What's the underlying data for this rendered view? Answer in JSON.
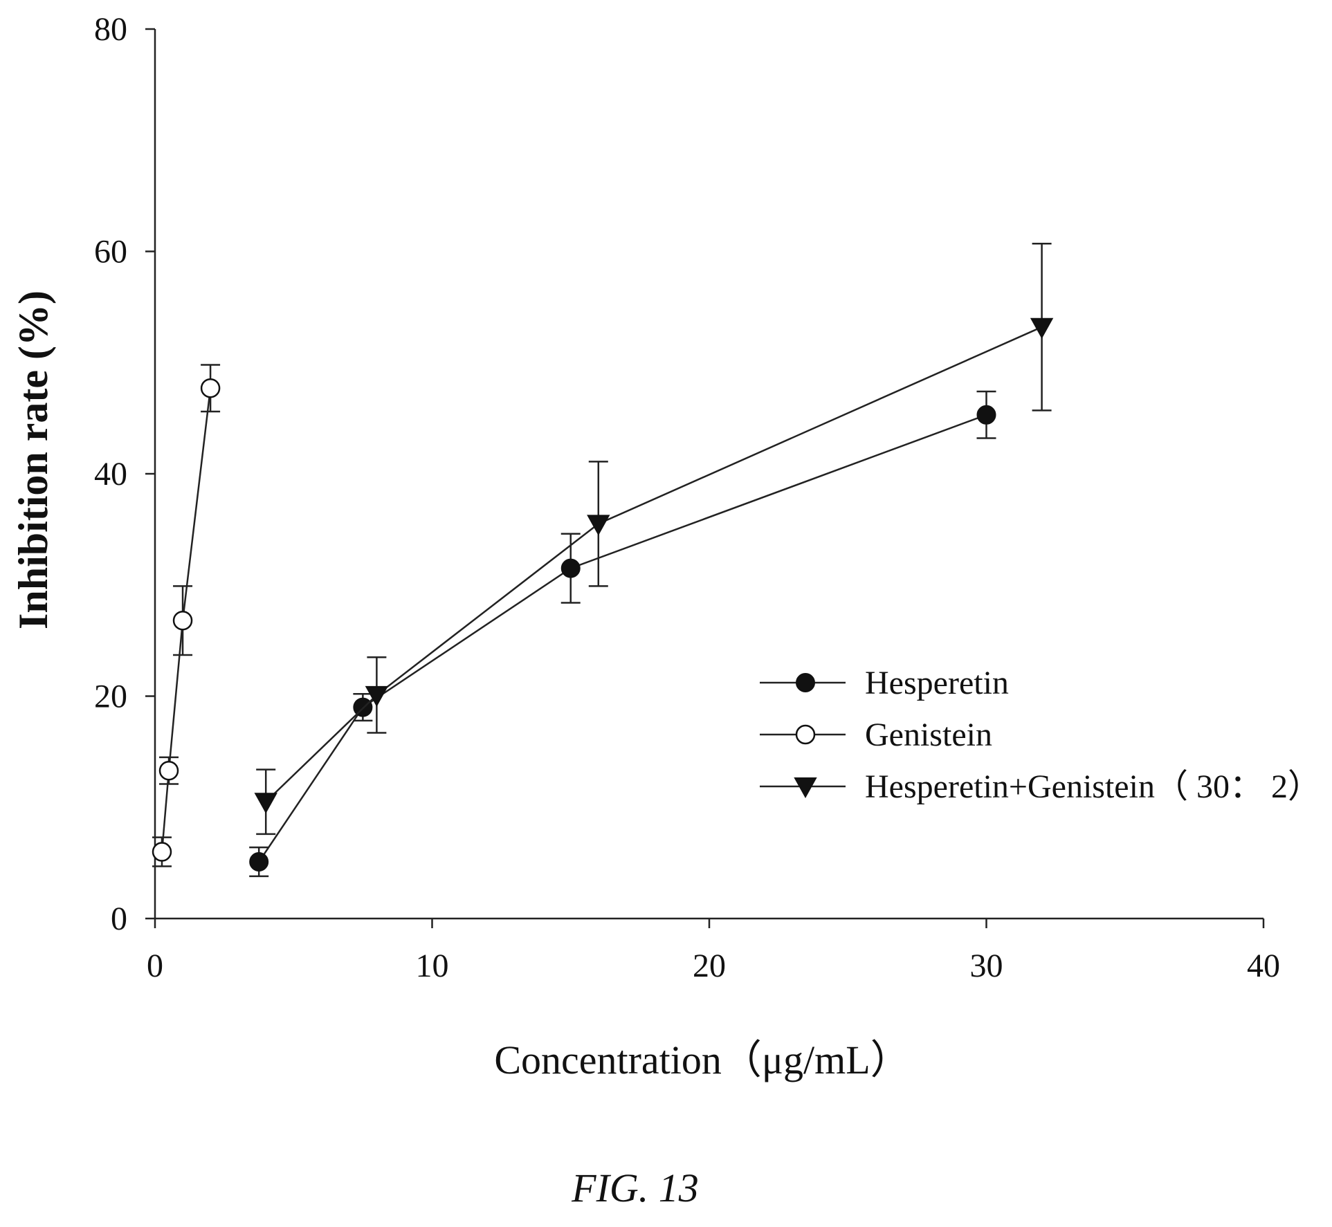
{
  "figure_caption": "FIG. 13",
  "colors": {
    "ink": "#111111",
    "background": "#ffffff"
  },
  "chart_data": {
    "type": "scatter",
    "title": "",
    "xlabel": "Concentration（μg/mL）",
    "ylabel": "Inhibition rate (%)",
    "xlim": [
      0,
      40
    ],
    "ylim": [
      0,
      80
    ],
    "xticks": [
      0,
      10,
      20,
      30,
      40
    ],
    "yticks": [
      0,
      20,
      40,
      60,
      80
    ],
    "grid": false,
    "legend_position": "right-middle",
    "series": [
      {
        "name": "Hesperetin",
        "marker": "filled-circle",
        "x": [
          3.75,
          7.5,
          15,
          30
        ],
        "y": [
          5.1,
          19.0,
          31.5,
          45.3
        ],
        "err": [
          1.3,
          1.2,
          3.1,
          2.1
        ]
      },
      {
        "name": "Genistein",
        "marker": "open-circle",
        "x": [
          0.25,
          0.5,
          1,
          2
        ],
        "y": [
          6.0,
          13.3,
          26.8,
          47.7
        ],
        "err": [
          1.3,
          1.2,
          3.1,
          2.1
        ]
      },
      {
        "name": "Hesperetin+Genistein（ 30： 2）",
        "marker": "filled-triangle-down",
        "x": [
          4,
          8,
          16,
          32
        ],
        "y": [
          10.5,
          20.1,
          35.5,
          53.2
        ],
        "err": [
          2.9,
          3.4,
          5.6,
          7.5
        ]
      }
    ]
  }
}
